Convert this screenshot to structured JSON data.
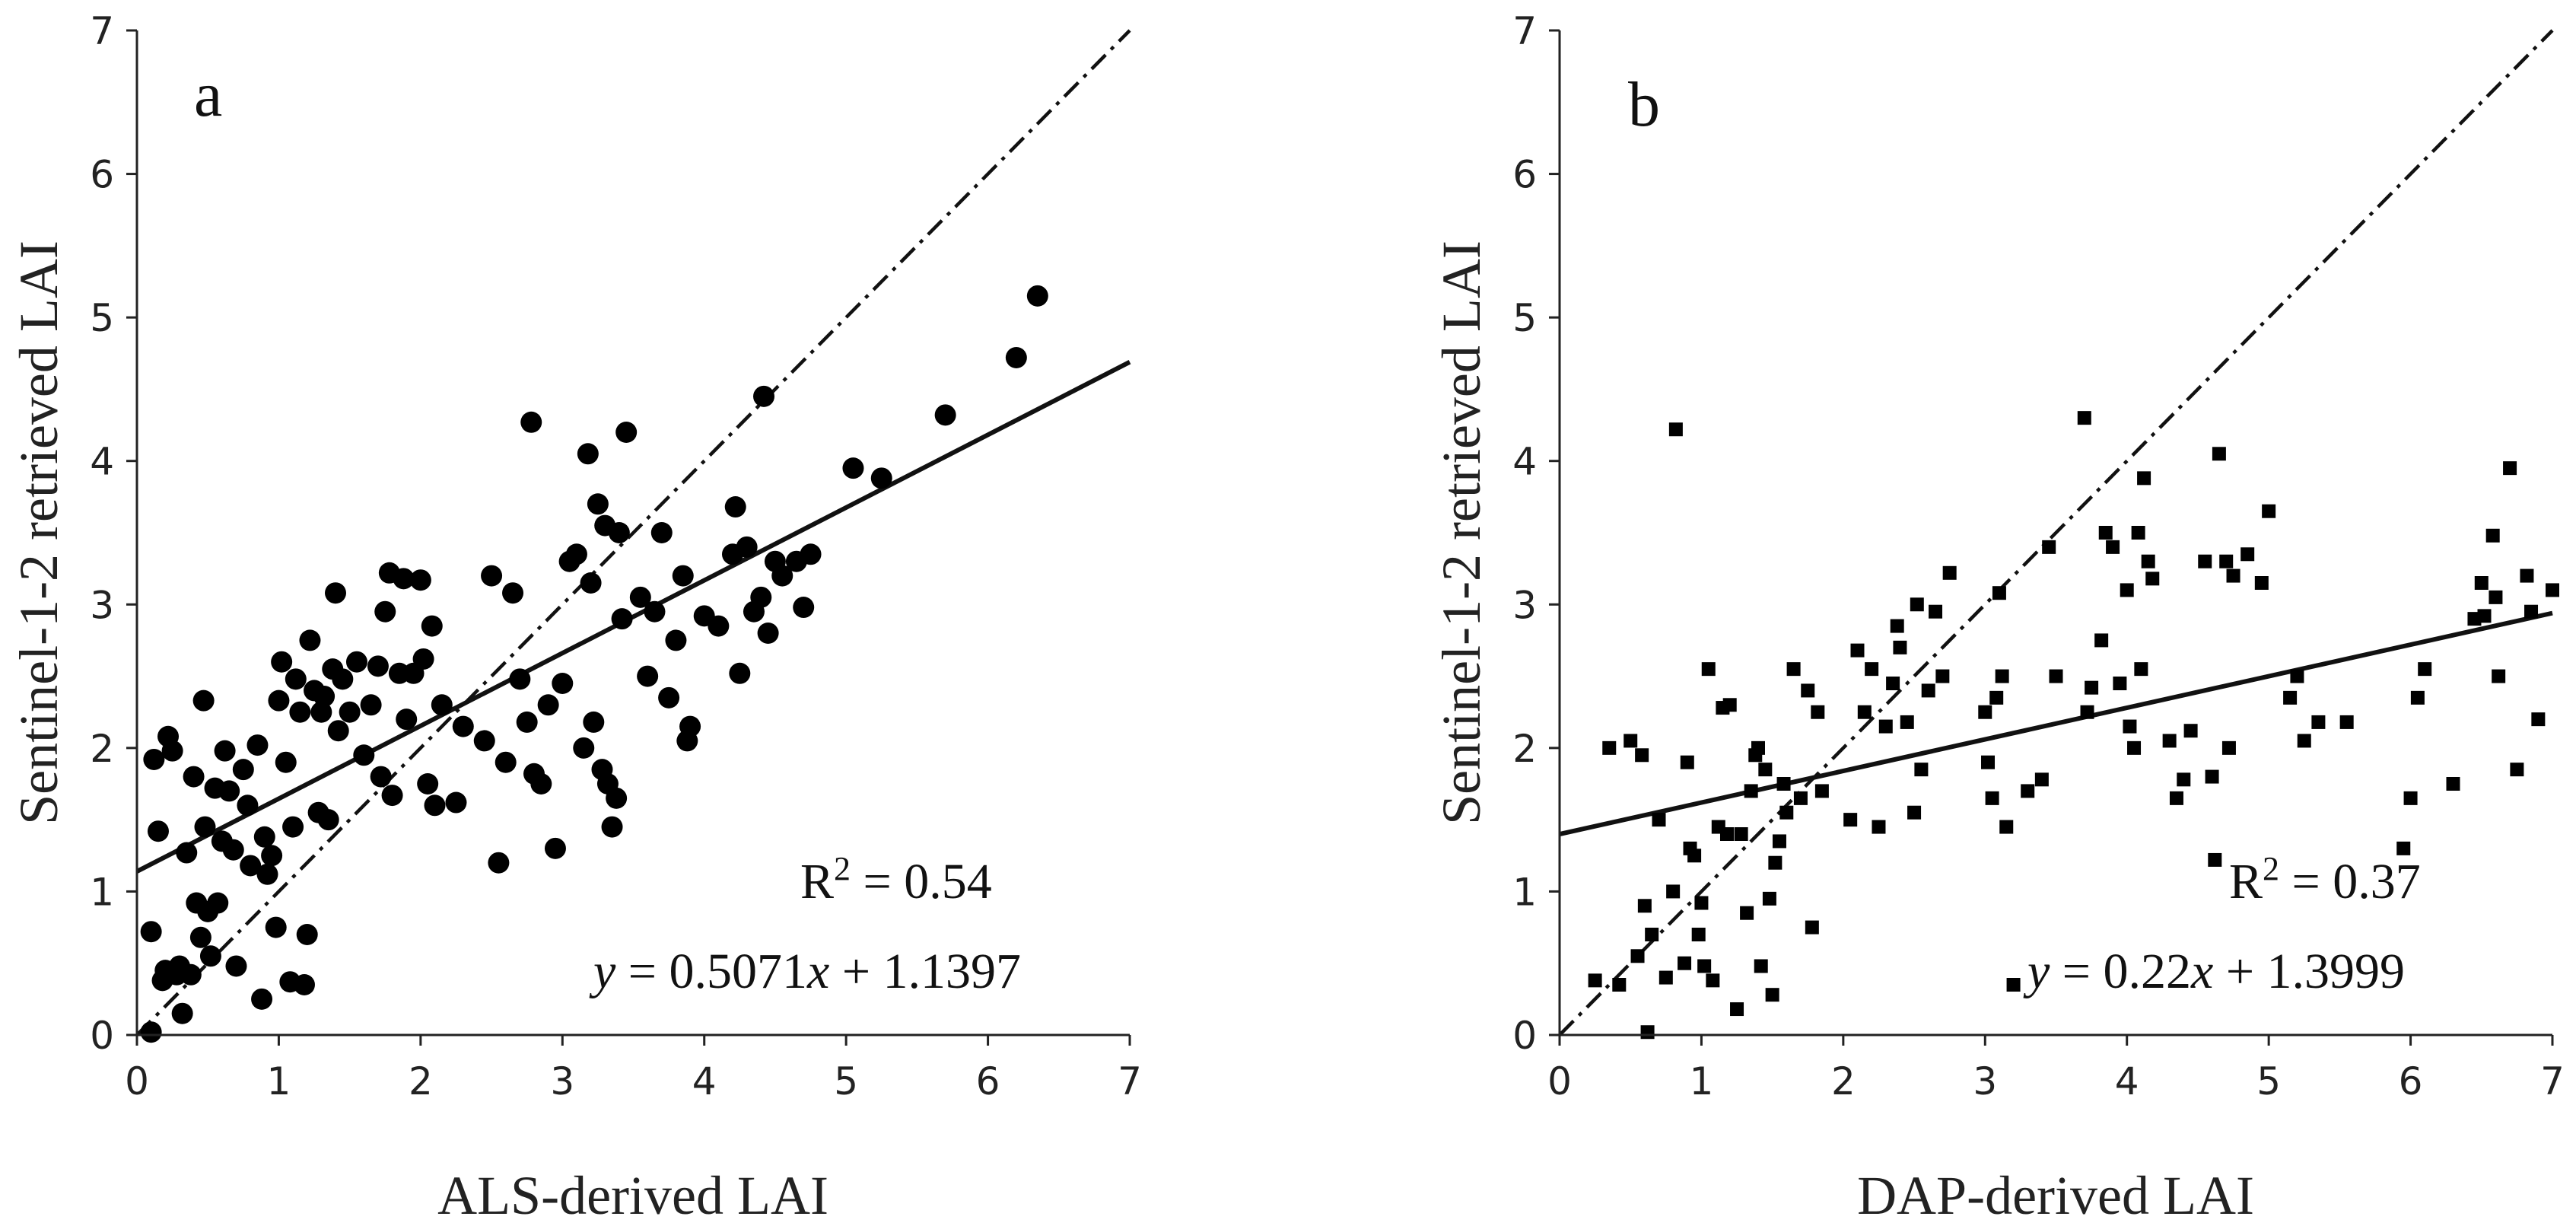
{
  "chart_data": [
    {
      "type": "scatter",
      "panel_label": "a",
      "xlabel": "ALS-derived LAI",
      "ylabel": "Sentinel-1-2 retrieved LAI",
      "xlim": [
        0,
        7
      ],
      "ylim": [
        0,
        7
      ],
      "xticks": [
        "0",
        "1",
        "2",
        "3",
        "4",
        "5",
        "6",
        "7"
      ],
      "yticks": [
        "0",
        "1",
        "2",
        "3",
        "4",
        "5",
        "6",
        "7"
      ],
      "marker": "circle",
      "r2_prefix": "R",
      "r2_sup": "2",
      "r2_value": " = 0.54",
      "eq_y": "y",
      "eq_mid": " = 0.5071",
      "eq_x": "x",
      "eq_end": " + 1.1397",
      "fit": {
        "slope": 0.5071,
        "intercept": 1.1397
      },
      "one_to_one": true,
      "grid": false,
      "points": [
        [
          0.1,
          0.02
        ],
        [
          0.1,
          0.72
        ],
        [
          0.12,
          1.92
        ],
        [
          0.15,
          1.42
        ],
        [
          0.18,
          0.38
        ],
        [
          0.2,
          0.45
        ],
        [
          0.22,
          2.08
        ],
        [
          0.25,
          1.98
        ],
        [
          0.28,
          0.42
        ],
        [
          0.3,
          0.48
        ],
        [
          0.32,
          0.15
        ],
        [
          0.35,
          1.27
        ],
        [
          0.38,
          0.42
        ],
        [
          0.4,
          1.8
        ],
        [
          0.42,
          0.92
        ],
        [
          0.45,
          0.68
        ],
        [
          0.47,
          2.33
        ],
        [
          0.48,
          1.45
        ],
        [
          0.5,
          0.86
        ],
        [
          0.52,
          0.55
        ],
        [
          0.55,
          1.72
        ],
        [
          0.57,
          0.92
        ],
        [
          0.6,
          1.35
        ],
        [
          0.62,
          1.98
        ],
        [
          0.65,
          1.7
        ],
        [
          0.68,
          1.29
        ],
        [
          0.7,
          0.48
        ],
        [
          0.75,
          1.85
        ],
        [
          0.78,
          1.6
        ],
        [
          0.8,
          1.18
        ],
        [
          0.85,
          2.02
        ],
        [
          0.88,
          0.25
        ],
        [
          0.9,
          1.38
        ],
        [
          0.92,
          1.12
        ],
        [
          0.95,
          1.25
        ],
        [
          0.98,
          0.75
        ],
        [
          1.0,
          2.33
        ],
        [
          1.02,
          2.6
        ],
        [
          1.05,
          1.9
        ],
        [
          1.08,
          0.37
        ],
        [
          1.1,
          1.45
        ],
        [
          1.12,
          2.48
        ],
        [
          1.15,
          2.25
        ],
        [
          1.18,
          0.35
        ],
        [
          1.2,
          0.7
        ],
        [
          1.22,
          2.75
        ],
        [
          1.25,
          2.4
        ],
        [
          1.28,
          1.55
        ],
        [
          1.3,
          2.25
        ],
        [
          1.32,
          2.36
        ],
        [
          1.35,
          1.5
        ],
        [
          1.38,
          2.55
        ],
        [
          1.4,
          3.08
        ],
        [
          1.42,
          2.12
        ],
        [
          1.45,
          2.48
        ],
        [
          1.5,
          2.25
        ],
        [
          1.55,
          2.6
        ],
        [
          1.6,
          1.95
        ],
        [
          1.65,
          2.3
        ],
        [
          1.7,
          2.57
        ],
        [
          1.72,
          1.8
        ],
        [
          1.75,
          2.95
        ],
        [
          1.78,
          3.22
        ],
        [
          1.8,
          1.67
        ],
        [
          1.85,
          2.52
        ],
        [
          1.88,
          3.18
        ],
        [
          1.9,
          2.2
        ],
        [
          1.95,
          2.52
        ],
        [
          2.0,
          3.17
        ],
        [
          2.02,
          2.62
        ],
        [
          2.05,
          1.75
        ],
        [
          2.08,
          2.85
        ],
        [
          2.1,
          1.6
        ],
        [
          2.15,
          2.3
        ],
        [
          2.25,
          1.62
        ],
        [
          2.3,
          2.15
        ],
        [
          2.45,
          2.05
        ],
        [
          2.5,
          3.2
        ],
        [
          2.55,
          1.2
        ],
        [
          2.6,
          1.9
        ],
        [
          2.65,
          3.08
        ],
        [
          2.7,
          2.48
        ],
        [
          2.75,
          2.18
        ],
        [
          2.78,
          4.27
        ],
        [
          2.8,
          1.82
        ],
        [
          2.85,
          1.75
        ],
        [
          2.9,
          2.3
        ],
        [
          2.95,
          1.3
        ],
        [
          3.0,
          2.45
        ],
        [
          3.05,
          3.3
        ],
        [
          3.1,
          3.35
        ],
        [
          3.15,
          2.0
        ],
        [
          3.18,
          4.05
        ],
        [
          3.2,
          3.15
        ],
        [
          3.22,
          2.18
        ],
        [
          3.25,
          3.7
        ],
        [
          3.28,
          1.85
        ],
        [
          3.3,
          3.55
        ],
        [
          3.32,
          1.75
        ],
        [
          3.35,
          1.45
        ],
        [
          3.38,
          1.65
        ],
        [
          3.4,
          3.5
        ],
        [
          3.42,
          2.9
        ],
        [
          3.45,
          4.2
        ],
        [
          3.55,
          3.05
        ],
        [
          3.6,
          2.5
        ],
        [
          3.65,
          2.95
        ],
        [
          3.7,
          3.5
        ],
        [
          3.75,
          2.35
        ],
        [
          3.8,
          2.75
        ],
        [
          3.85,
          3.2
        ],
        [
          3.88,
          2.05
        ],
        [
          3.9,
          2.15
        ],
        [
          4.0,
          2.92
        ],
        [
          4.1,
          2.85
        ],
        [
          4.2,
          3.35
        ],
        [
          4.22,
          3.68
        ],
        [
          4.25,
          2.52
        ],
        [
          4.3,
          3.4
        ],
        [
          4.35,
          2.95
        ],
        [
          4.4,
          3.05
        ],
        [
          4.42,
          4.45
        ],
        [
          4.45,
          2.8
        ],
        [
          4.5,
          3.3
        ],
        [
          4.55,
          3.2
        ],
        [
          4.65,
          3.3
        ],
        [
          4.7,
          2.98
        ],
        [
          4.75,
          3.35
        ],
        [
          5.05,
          3.95
        ],
        [
          5.25,
          3.88
        ],
        [
          5.7,
          4.32
        ],
        [
          6.2,
          4.72
        ],
        [
          6.35,
          5.15
        ]
      ]
    },
    {
      "type": "scatter",
      "panel_label": "b",
      "xlabel": "DAP-derived LAI",
      "ylabel": "Sentinel-1-2 retrieved LAI",
      "xlim": [
        0,
        7
      ],
      "ylim": [
        0,
        7
      ],
      "xticks": [
        "0",
        "1",
        "2",
        "3",
        "4",
        "5",
        "6",
        "7"
      ],
      "yticks": [
        "0",
        "1",
        "2",
        "3",
        "4",
        "5",
        "6",
        "7"
      ],
      "marker": "square",
      "r2_prefix": "R",
      "r2_sup": "2",
      "r2_value": " = 0.37",
      "eq_y": "y",
      "eq_mid": " = 0.22",
      "eq_x": "x",
      "eq_end": " + 1.3999",
      "fit": {
        "slope": 0.22,
        "intercept": 1.3999
      },
      "one_to_one": true,
      "grid": false,
      "points": [
        [
          0.25,
          0.38
        ],
        [
          0.35,
          2.0
        ],
        [
          0.42,
          0.35
        ],
        [
          0.5,
          2.05
        ],
        [
          0.55,
          0.55
        ],
        [
          0.58,
          1.95
        ],
        [
          0.6,
          0.9
        ],
        [
          0.62,
          0.02
        ],
        [
          0.65,
          0.7
        ],
        [
          0.7,
          1.5
        ],
        [
          0.75,
          0.4
        ],
        [
          0.8,
          1.0
        ],
        [
          0.82,
          4.22
        ],
        [
          0.88,
          0.5
        ],
        [
          0.9,
          1.9
        ],
        [
          0.92,
          1.3
        ],
        [
          0.95,
          1.25
        ],
        [
          0.98,
          0.7
        ],
        [
          1.0,
          0.92
        ],
        [
          1.02,
          0.48
        ],
        [
          1.05,
          2.55
        ],
        [
          1.08,
          0.38
        ],
        [
          1.12,
          1.45
        ],
        [
          1.15,
          2.28
        ],
        [
          1.18,
          1.4
        ],
        [
          1.2,
          2.3
        ],
        [
          1.25,
          0.18
        ],
        [
          1.28,
          1.4
        ],
        [
          1.32,
          0.85
        ],
        [
          1.35,
          1.7
        ],
        [
          1.38,
          1.95
        ],
        [
          1.4,
          2.0
        ],
        [
          1.42,
          0.48
        ],
        [
          1.45,
          1.85
        ],
        [
          1.48,
          0.95
        ],
        [
          1.5,
          0.28
        ],
        [
          1.52,
          1.2
        ],
        [
          1.55,
          1.35
        ],
        [
          1.58,
          1.75
        ],
        [
          1.6,
          1.55
        ],
        [
          1.65,
          2.55
        ],
        [
          1.7,
          1.65
        ],
        [
          1.75,
          2.4
        ],
        [
          1.78,
          0.75
        ],
        [
          1.82,
          2.25
        ],
        [
          1.85,
          1.7
        ],
        [
          2.05,
          1.5
        ],
        [
          2.1,
          2.68
        ],
        [
          2.15,
          2.25
        ],
        [
          2.2,
          2.55
        ],
        [
          2.25,
          1.45
        ],
        [
          2.3,
          2.15
        ],
        [
          2.35,
          2.45
        ],
        [
          2.38,
          2.85
        ],
        [
          2.4,
          2.7
        ],
        [
          2.45,
          2.18
        ],
        [
          2.5,
          1.55
        ],
        [
          2.52,
          3.0
        ],
        [
          2.55,
          1.85
        ],
        [
          2.6,
          2.4
        ],
        [
          2.65,
          2.95
        ],
        [
          2.7,
          2.5
        ],
        [
          2.75,
          3.22
        ],
        [
          3.0,
          2.25
        ],
        [
          3.02,
          1.9
        ],
        [
          3.05,
          1.65
        ],
        [
          3.08,
          2.35
        ],
        [
          3.1,
          3.08
        ],
        [
          3.12,
          2.5
        ],
        [
          3.15,
          1.45
        ],
        [
          3.2,
          0.35
        ],
        [
          3.3,
          1.7
        ],
        [
          3.4,
          1.78
        ],
        [
          3.45,
          3.4
        ],
        [
          3.5,
          2.5
        ],
        [
          3.7,
          4.3
        ],
        [
          3.72,
          2.25
        ],
        [
          3.75,
          2.42
        ],
        [
          3.82,
          2.75
        ],
        [
          3.85,
          3.5
        ],
        [
          3.9,
          3.4
        ],
        [
          3.95,
          2.45
        ],
        [
          4.0,
          3.1
        ],
        [
          4.02,
          2.15
        ],
        [
          4.05,
          2.0
        ],
        [
          4.08,
          3.5
        ],
        [
          4.1,
          2.55
        ],
        [
          4.12,
          3.88
        ],
        [
          4.15,
          3.3
        ],
        [
          4.18,
          3.18
        ],
        [
          4.3,
          2.05
        ],
        [
          4.35,
          1.65
        ],
        [
          4.4,
          1.78
        ],
        [
          4.45,
          2.12
        ],
        [
          4.55,
          3.3
        ],
        [
          4.6,
          1.8
        ],
        [
          4.62,
          1.22
        ],
        [
          4.65,
          4.05
        ],
        [
          4.7,
          3.3
        ],
        [
          4.72,
          2.0
        ],
        [
          4.75,
          3.2
        ],
        [
          4.85,
          3.35
        ],
        [
          4.95,
          3.15
        ],
        [
          5.0,
          3.65
        ],
        [
          5.15,
          2.35
        ],
        [
          5.2,
          2.5
        ],
        [
          5.25,
          2.05
        ],
        [
          5.35,
          2.18
        ],
        [
          5.55,
          2.18
        ],
        [
          5.95,
          1.3
        ],
        [
          6.0,
          1.65
        ],
        [
          6.05,
          2.35
        ],
        [
          6.1,
          2.55
        ],
        [
          6.3,
          1.75
        ],
        [
          6.45,
          2.9
        ],
        [
          6.5,
          3.15
        ],
        [
          6.52,
          2.92
        ],
        [
          6.58,
          3.48
        ],
        [
          6.6,
          3.05
        ],
        [
          6.62,
          2.5
        ],
        [
          6.7,
          3.95
        ],
        [
          6.75,
          1.85
        ],
        [
          6.82,
          3.2
        ],
        [
          6.85,
          2.95
        ],
        [
          6.9,
          2.2
        ],
        [
          7.0,
          3.1
        ]
      ]
    }
  ]
}
